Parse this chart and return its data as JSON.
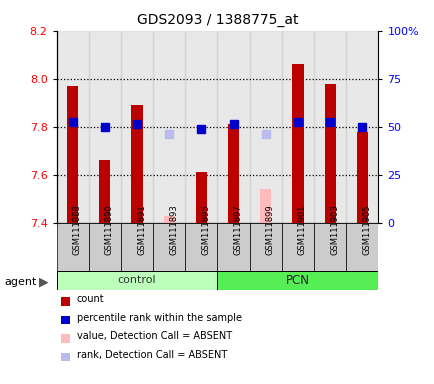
{
  "title": "GDS2093 / 1388775_at",
  "samples": [
    "GSM111888",
    "GSM111890",
    "GSM111891",
    "GSM111893",
    "GSM111895",
    "GSM111897",
    "GSM111899",
    "GSM111901",
    "GSM111903",
    "GSM111905"
  ],
  "red_values": [
    7.97,
    7.66,
    7.89,
    null,
    7.61,
    7.81,
    null,
    8.06,
    7.98,
    7.78
  ],
  "pink_values": [
    null,
    null,
    null,
    7.43,
    null,
    null,
    7.54,
    null,
    null,
    null
  ],
  "blue_values": [
    7.82,
    7.8,
    7.81,
    null,
    7.79,
    7.81,
    null,
    7.82,
    7.82,
    7.8
  ],
  "light_blue_values": [
    null,
    null,
    null,
    7.77,
    null,
    null,
    7.77,
    null,
    null,
    null
  ],
  "ylim": [
    7.4,
    8.2
  ],
  "y2lim": [
    0,
    100
  ],
  "yticks": [
    7.4,
    7.6,
    7.8,
    8.0,
    8.2
  ],
  "y2ticks": [
    0,
    25,
    50,
    75,
    100
  ],
  "y2tick_labels": [
    "0",
    "25",
    "50",
    "75",
    "100%"
  ],
  "dotted_lines": [
    7.6,
    7.8,
    8.0
  ],
  "bar_bottom": 7.4,
  "red_color": "#bb0000",
  "pink_color": "#ffbbbb",
  "blue_color": "#0000cc",
  "light_blue_color": "#bbbbee",
  "col_bg_color": "#cccccc",
  "control_color": "#bbffbb",
  "pcn_color": "#55ee55",
  "legend_items": [
    {
      "color": "#bb0000",
      "label": "count"
    },
    {
      "color": "#0000cc",
      "label": "percentile rank within the sample"
    },
    {
      "color": "#ffbbbb",
      "label": "value, Detection Call = ABSENT"
    },
    {
      "color": "#bbbbee",
      "label": "rank, Detection Call = ABSENT"
    }
  ]
}
